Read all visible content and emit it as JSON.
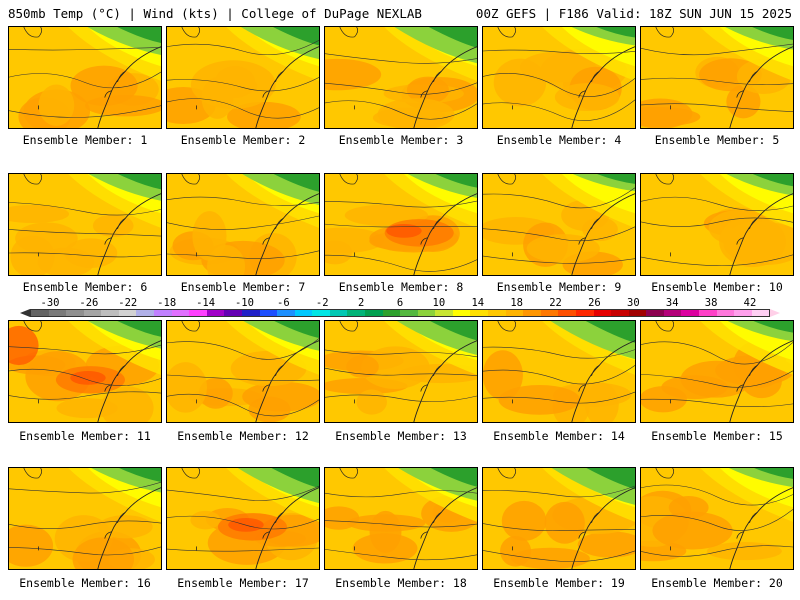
{
  "header": {
    "left": "850mb Temp (°C) | Wind (kts) | College of DuPage NEXLAB",
    "right": "00Z GEFS | F186 Valid: 18Z SUN JUN 15 2025"
  },
  "colorbar": {
    "labels": [
      "-30",
      "-26",
      "-22",
      "-18",
      "-14",
      "-10",
      "-6",
      "-2",
      "2",
      "6",
      "10",
      "14",
      "18",
      "22",
      "26",
      "30",
      "34",
      "38",
      "42"
    ],
    "colors": [
      "#646464",
      "#7a7a7a",
      "#8f8f8f",
      "#a5a5a5",
      "#bdbdbd",
      "#d2d2d2",
      "#b0b0e8",
      "#c080ff",
      "#e070ff",
      "#ff40ff",
      "#a000c8",
      "#6400b4",
      "#2020c8",
      "#1e50ff",
      "#1e90ff",
      "#00c8ff",
      "#00e5e5",
      "#00c8b4",
      "#00b478",
      "#00a050",
      "#2ca02c",
      "#54b840",
      "#8cd23c",
      "#c8e632",
      "#ffff00",
      "#ffe000",
      "#ffc800",
      "#ffb400",
      "#ff9600",
      "#ff7800",
      "#ff5000",
      "#ff2800",
      "#e60000",
      "#c80000",
      "#a00000",
      "#8c0050",
      "#b4007a",
      "#dc00a0",
      "#ff40c8",
      "#ff78dc",
      "#ffa0ec",
      "#ffd0f4"
    ]
  },
  "members": [
    {
      "label": "Ensemble Member: 1"
    },
    {
      "label": "Ensemble Member: 2"
    },
    {
      "label": "Ensemble Member: 3"
    },
    {
      "label": "Ensemble Member: 4"
    },
    {
      "label": "Ensemble Member: 5"
    },
    {
      "label": "Ensemble Member: 6"
    },
    {
      "label": "Ensemble Member: 7"
    },
    {
      "label": "Ensemble Member: 8"
    },
    {
      "label": "Ensemble Member: 9"
    },
    {
      "label": "Ensemble Member: 10"
    },
    {
      "label": "Ensemble Member: 11"
    },
    {
      "label": "Ensemble Member: 12"
    },
    {
      "label": "Ensemble Member: 13"
    },
    {
      "label": "Ensemble Member: 14"
    },
    {
      "label": "Ensemble Member: 15"
    },
    {
      "label": "Ensemble Member: 16"
    },
    {
      "label": "Ensemble Member: 17"
    },
    {
      "label": "Ensemble Member: 18"
    },
    {
      "label": "Ensemble Member: 19"
    },
    {
      "label": "Ensemble Member: 20"
    }
  ]
}
